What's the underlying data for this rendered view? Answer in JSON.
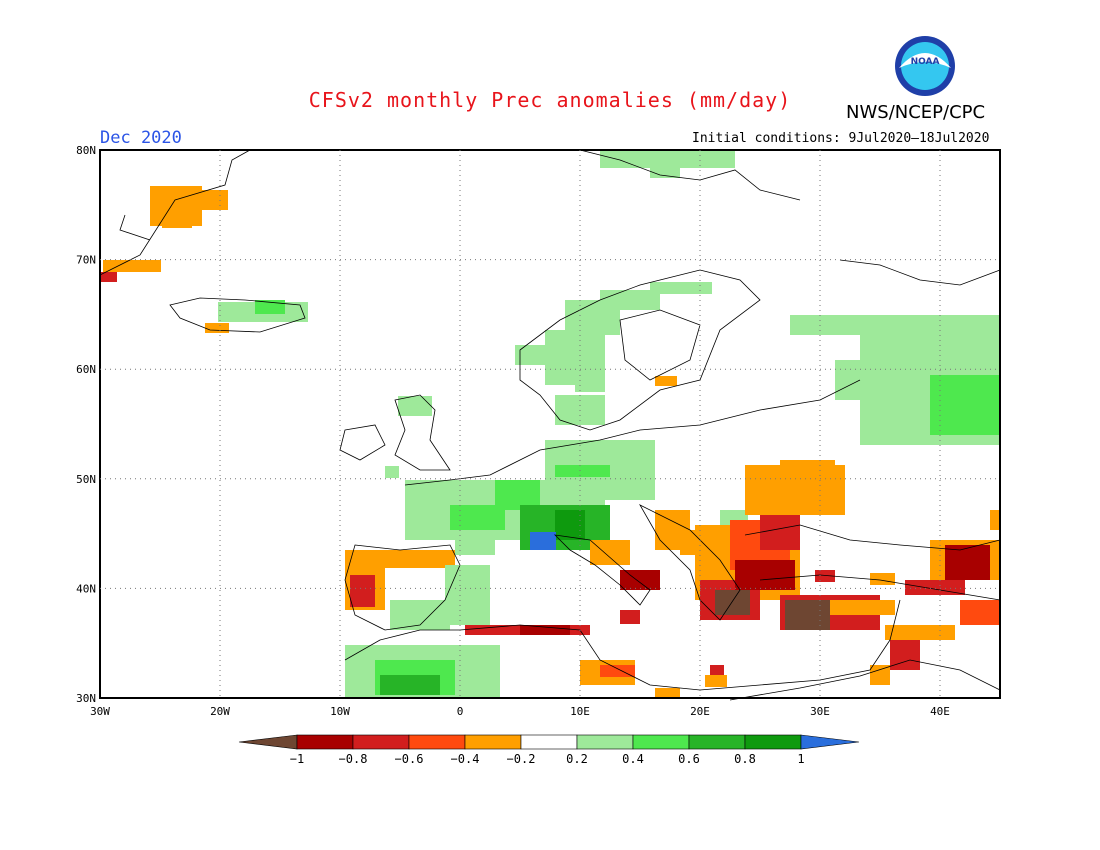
{
  "header": {
    "title": "CFSv2 monthly Prec anomalies (mm/day)",
    "org": "NWS/NCEP/CPC",
    "logo_text": "NOAA",
    "month": "Dec 2020",
    "initial_conditions": "Initial conditions: 9Jul2020–18Jul2020"
  },
  "map": {
    "lat_labels": [
      "80N",
      "70N",
      "60N",
      "50N",
      "40N",
      "30N"
    ],
    "lon_labels": [
      "30W",
      "20W",
      "10W",
      "0",
      "10E",
      "20E",
      "30E",
      "40E"
    ],
    "lon_range": [
      -30,
      45
    ],
    "lat_range": [
      30,
      80
    ]
  },
  "colorbar": {
    "labels": [
      "−1",
      "−0.8",
      "−0.6",
      "−0.4",
      "−0.2",
      "0.2",
      "0.4",
      "0.6",
      "0.8",
      "1"
    ],
    "colors": {
      "lt_m1": "#6e4632",
      "m1_m08": "#a80000",
      "m08_m06": "#d21e1e",
      "m06_m04": "#ff4a0f",
      "m04_m02": "#ff9f00",
      "m02_02": "#ffffff",
      "p02_04": "#9ee99a",
      "p04_06": "#4ee84e",
      "p06_08": "#27b427",
      "p08_1": "#0e9a0e",
      "gt_1": "#2a6edc"
    }
  }
}
